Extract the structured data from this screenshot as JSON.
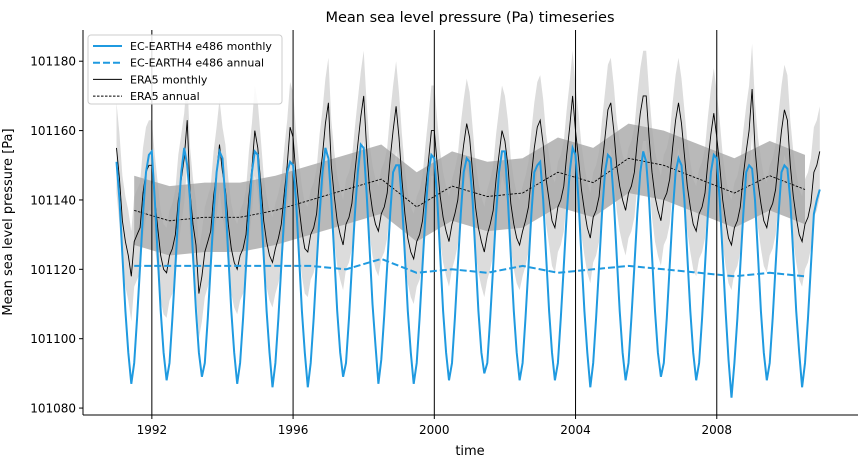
{
  "chart_data": {
    "type": "line",
    "title": "Mean sea level pressure (Pa) timeseries",
    "xlabel": "time",
    "ylabel": "Mean sea level pressure [Pa]",
    "xlim": [
      1990.05,
      2012.0
    ],
    "ylim": [
      101078,
      101189
    ],
    "xticks": [
      1992,
      1996,
      2000,
      2004,
      2008
    ],
    "xtick_labels": [
      "1992",
      "1996",
      "2000",
      "2004",
      "2008"
    ],
    "yticks": [
      101080,
      101100,
      101120,
      101140,
      101160,
      101180
    ],
    "ytick_labels": [
      "101080",
      "101100",
      "101120",
      "101140",
      "101160",
      "101180"
    ],
    "grid": "vertical lines at x ticks",
    "legend_placement": "top-left",
    "years": [
      1991,
      1992,
      1993,
      1994,
      1995,
      1996,
      1997,
      1998,
      1999,
      2000,
      2001,
      2002,
      2003,
      2004,
      2005,
      2006,
      2007,
      2008,
      2009,
      2010
    ],
    "series": [
      {
        "name": "EC-EARTH4 e486 monthly",
        "style": "solid",
        "color": "#1f9ae0",
        "monthly_by_year": [
          [
            101151,
            101140,
            101124,
            101108,
            101096,
            101087,
            101093,
            101106,
            101121,
            101136,
            101148,
            101153
          ],
          [
            101154,
            101140,
            101124,
            101108,
            101096,
            101088,
            101093,
            101106,
            101121,
            101136,
            101148,
            101155
          ],
          [
            101150,
            101140,
            101124,
            101108,
            101096,
            101089,
            101093,
            101106,
            101121,
            101136,
            101148,
            101154
          ],
          [
            101152,
            101140,
            101124,
            101108,
            101096,
            101087,
            101093,
            101106,
            101121,
            101136,
            101148,
            101154
          ],
          [
            101153,
            101140,
            101124,
            101108,
            101096,
            101086,
            101093,
            101106,
            101121,
            101136,
            101148,
            101151
          ],
          [
            101150,
            101140,
            101124,
            101108,
            101096,
            101086,
            101093,
            101106,
            101121,
            101136,
            101148,
            101155
          ],
          [
            101152,
            101140,
            101124,
            101108,
            101096,
            101089,
            101093,
            101106,
            101121,
            101136,
            101148,
            101156
          ],
          [
            101155,
            101142,
            101126,
            101110,
            101098,
            101087,
            101094,
            101107,
            101121,
            101136,
            101148,
            101150
          ],
          [
            101150,
            101140,
            101124,
            101108,
            101096,
            101087,
            101093,
            101106,
            101121,
            101136,
            101148,
            101153
          ],
          [
            101152,
            101140,
            101124,
            101108,
            101096,
            101088,
            101093,
            101106,
            101121,
            101136,
            101148,
            101152
          ],
          [
            101151,
            101140,
            101124,
            101108,
            101096,
            101090,
            101093,
            101106,
            101121,
            101136,
            101148,
            101154
          ],
          [
            101154,
            101140,
            101124,
            101108,
            101096,
            101088,
            101093,
            101106,
            101121,
            101136,
            101148,
            101150
          ],
          [
            101151,
            101140,
            101124,
            101108,
            101096,
            101088,
            101093,
            101106,
            101121,
            101136,
            101148,
            101155
          ],
          [
            101153,
            101140,
            101124,
            101108,
            101096,
            101086,
            101093,
            101106,
            101121,
            101136,
            101148,
            101153
          ],
          [
            101152,
            101140,
            101124,
            101108,
            101096,
            101088,
            101093,
            101106,
            101121,
            101136,
            101148,
            101154
          ],
          [
            101151,
            101140,
            101124,
            101108,
            101096,
            101089,
            101093,
            101106,
            101121,
            101136,
            101148,
            101152
          ],
          [
            101150,
            101140,
            101124,
            101108,
            101096,
            101088,
            101093,
            101106,
            101121,
            101136,
            101148,
            101153
          ],
          [
            101152,
            101140,
            101124,
            101108,
            101094,
            101083,
            101093,
            101106,
            101121,
            101136,
            101148,
            101150
          ],
          [
            101149,
            101140,
            101124,
            101108,
            101096,
            101088,
            101093,
            101106,
            101121,
            101136,
            101148,
            101150
          ],
          [
            101149,
            101140,
            101124,
            101108,
            101096,
            101086,
            101093,
            101106,
            101121,
            101136,
            101140,
            101143
          ]
        ]
      },
      {
        "name": "EC-EARTH4 e486 annual",
        "style": "dashed",
        "color": "#1f9ae0",
        "annual": [
          101121,
          101121,
          101121,
          101121,
          101121,
          101121,
          101120,
          101123,
          101119,
          101120,
          101119,
          101121,
          101119,
          101120,
          101121,
          101120,
          101119,
          101118,
          101119,
          101118
        ]
      },
      {
        "name": "ERA5 monthly",
        "style": "solid",
        "color": "#000000",
        "band_halfwidth_pa": 13,
        "monthly_by_year": [
          [
            101155,
            101146,
            101134,
            101128,
            101124,
            101118,
            101128,
            101130,
            101132,
            101142,
            101148,
            101150
          ],
          [
            101150,
            101140,
            101132,
            101124,
            101120,
            101119,
            101124,
            101126,
            101130,
            101140,
            101146,
            101152
          ],
          [
            101163,
            101142,
            101133,
            101127,
            101113,
            101118,
            101125,
            101128,
            101131,
            101141,
            101148,
            101156
          ],
          [
            101148,
            101143,
            101133,
            101126,
            101122,
            101120,
            101124,
            101126,
            101130,
            101141,
            101149,
            101160
          ],
          [
            101155,
            101145,
            101134,
            101128,
            101124,
            101122,
            101126,
            101129,
            101133,
            101142,
            101150,
            101161
          ],
          [
            101158,
            101147,
            101138,
            101131,
            101126,
            101125,
            101130,
            101132,
            101136,
            101146,
            101153,
            101162
          ],
          [
            101168,
            101150,
            101141,
            101134,
            101130,
            101127,
            101133,
            101135,
            101139,
            101148,
            101156,
            101164
          ],
          [
            101170,
            101155,
            101143,
            101137,
            101133,
            101131,
            101136,
            101138,
            101142,
            101152,
            101160,
            101167
          ],
          [
            101158,
            101146,
            101136,
            101129,
            101125,
            101123,
            101128,
            101130,
            101134,
            101143,
            101151,
            101160
          ],
          [
            101160,
            101150,
            101141,
            101135,
            101131,
            101128,
            101133,
            101136,
            101140,
            101149,
            101156,
            101162
          ],
          [
            101158,
            101148,
            101138,
            101132,
            101128,
            101125,
            101130,
            101133,
            101137,
            101146,
            101153,
            101160
          ],
          [
            101157,
            101150,
            101139,
            101133,
            101129,
            101127,
            101131,
            101134,
            101138,
            101147,
            101155,
            101161
          ],
          [
            101163,
            101156,
            101146,
            101140,
            101134,
            101132,
            101138,
            101140,
            101144,
            101153,
            101161,
            101170
          ],
          [
            101160,
            101152,
            101143,
            101137,
            101132,
            101129,
            101135,
            101137,
            101141,
            101150,
            101158,
            101166
          ],
          [
            101168,
            101160,
            101150,
            101144,
            101140,
            101137,
            101142,
            101144,
            101148,
            101157,
            101165,
            101170
          ],
          [
            101170,
            101158,
            101148,
            101141,
            101137,
            101134,
            101140,
            101142,
            101146,
            101155,
            101163,
            101168
          ],
          [
            101162,
            101153,
            101144,
            101138,
            101133,
            101131,
            101136,
            101138,
            101142,
            101151,
            101159,
            101165
          ],
          [
            101158,
            101150,
            101140,
            101134,
            101129,
            101127,
            101132,
            101134,
            101138,
            101147,
            101154,
            101160
          ],
          [
            101172,
            101155,
            101145,
            101139,
            101134,
            101132,
            101137,
            101139,
            101143,
            101152,
            101160,
            101166
          ],
          [
            101163,
            101150,
            101141,
            101135,
            101130,
            101128,
            101133,
            101135,
            101139,
            101148,
            101150,
            101154
          ]
        ]
      },
      {
        "name": "ERA5 annual",
        "style": "dotted",
        "color": "#000000",
        "band_halfwidth_pa": 10,
        "annual": [
          101137,
          101134,
          101135,
          101135,
          101137,
          101140,
          101143,
          101146,
          101138,
          101144,
          101141,
          101142,
          101148,
          101145,
          101152,
          101150,
          101146,
          101142,
          101147,
          101143
        ]
      }
    ],
    "band_colors": {
      "monthly": "#dcdcdc",
      "annual": "#a8a8a8"
    }
  }
}
